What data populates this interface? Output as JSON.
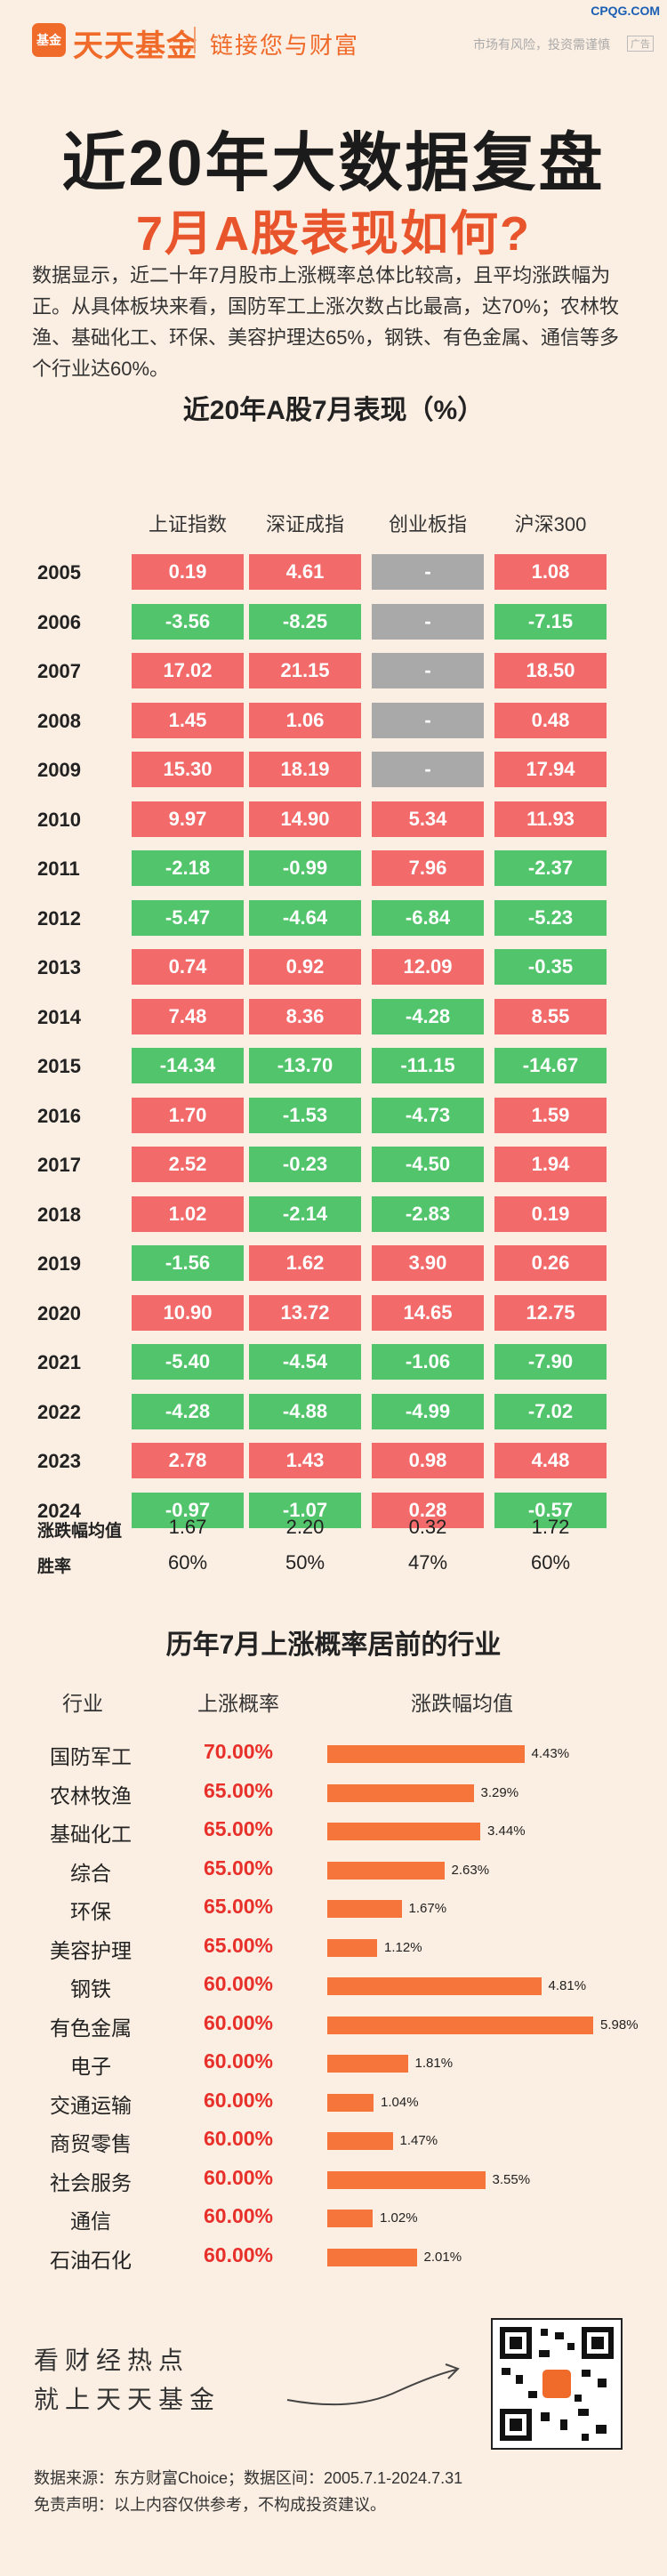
{
  "header": {
    "logo_badge": "基金",
    "logo_text": "天天基金",
    "slogan": "链接您与财富",
    "risk_note": "市场有风险，投资需谨慎",
    "ad_tag": "广告",
    "corner_mark": "CPQG.COM"
  },
  "title_line1": "近20年大数据复盘",
  "title_line2": "7月A股表现如何?",
  "intro": "数据显示，近二十年7月股市上涨概率总体比较高，且平均涨跌幅为正。从具体板块来看，国防军工上涨次数占比最高，达70%；农林牧渔、基础化工、环保、美容护理达65%，钢铁、有色金属、通信等多个行业达60%。",
  "table": {
    "title": "近20年A股7月表现（%）",
    "columns": [
      "上证指数",
      "深证成指",
      "创业板指",
      "沪深300"
    ],
    "rows": [
      {
        "year": "2005",
        "values": [
          "0.19",
          "4.61",
          "-",
          "1.08"
        ]
      },
      {
        "year": "2006",
        "values": [
          "-3.56",
          "-8.25",
          "-",
          "-7.15"
        ]
      },
      {
        "year": "2007",
        "values": [
          "17.02",
          "21.15",
          "-",
          "18.50"
        ]
      },
      {
        "year": "2008",
        "values": [
          "1.45",
          "1.06",
          "-",
          "0.48"
        ]
      },
      {
        "year": "2009",
        "values": [
          "15.30",
          "18.19",
          "-",
          "17.94"
        ]
      },
      {
        "year": "2010",
        "values": [
          "9.97",
          "14.90",
          "5.34",
          "11.93"
        ]
      },
      {
        "year": "2011",
        "values": [
          "-2.18",
          "-0.99",
          "7.96",
          "-2.37"
        ]
      },
      {
        "year": "2012",
        "values": [
          "-5.47",
          "-4.64",
          "-6.84",
          "-5.23"
        ]
      },
      {
        "year": "2013",
        "values": [
          "0.74",
          "0.92",
          "12.09",
          "-0.35"
        ]
      },
      {
        "year": "2014",
        "values": [
          "7.48",
          "8.36",
          "-4.28",
          "8.55"
        ]
      },
      {
        "year": "2015",
        "values": [
          "-14.34",
          "-13.70",
          "-11.15",
          "-14.67"
        ]
      },
      {
        "year": "2016",
        "values": [
          "1.70",
          "-1.53",
          "-4.73",
          "1.59"
        ]
      },
      {
        "year": "2017",
        "values": [
          "2.52",
          "-0.23",
          "-4.50",
          "1.94"
        ]
      },
      {
        "year": "2018",
        "values": [
          "1.02",
          "-2.14",
          "-2.83",
          "0.19"
        ]
      },
      {
        "year": "2019",
        "values": [
          "-1.56",
          "1.62",
          "3.90",
          "0.26"
        ]
      },
      {
        "year": "2020",
        "values": [
          "10.90",
          "13.72",
          "14.65",
          "12.75"
        ]
      },
      {
        "year": "2021",
        "values": [
          "-5.40",
          "-4.54",
          "-1.06",
          "-7.90"
        ]
      },
      {
        "year": "2022",
        "values": [
          "-4.28",
          "-4.88",
          "-4.99",
          "-7.02"
        ]
      },
      {
        "year": "2023",
        "values": [
          "2.78",
          "1.43",
          "0.98",
          "4.48"
        ]
      },
      {
        "year": "2024",
        "values": [
          "-0.97",
          "-1.07",
          "0.28",
          "-0.57"
        ]
      }
    ],
    "avg_label": "涨跌幅均值",
    "avg_values": [
      "1.67",
      "2.20",
      "0.32",
      "1.72"
    ],
    "win_label": "胜率",
    "win_values": [
      "60%",
      "50%",
      "47%",
      "60%"
    ]
  },
  "industries": {
    "title": "历年7月上涨概率居前的行业",
    "col_industry": "行业",
    "col_prob": "上涨概率",
    "col_avg": "涨跌幅均值",
    "rows": [
      {
        "name": "国防军工",
        "prob": "70.00%",
        "avg": 4.43,
        "avg_label": "4.43%"
      },
      {
        "name": "农林牧渔",
        "prob": "65.00%",
        "avg": 3.29,
        "avg_label": "3.29%"
      },
      {
        "name": "基础化工",
        "prob": "65.00%",
        "avg": 3.44,
        "avg_label": "3.44%"
      },
      {
        "name": "综合",
        "prob": "65.00%",
        "avg": 2.63,
        "avg_label": "2.63%"
      },
      {
        "name": "环保",
        "prob": "65.00%",
        "avg": 1.67,
        "avg_label": "1.67%"
      },
      {
        "name": "美容护理",
        "prob": "65.00%",
        "avg": 1.12,
        "avg_label": "1.12%"
      },
      {
        "name": "钢铁",
        "prob": "60.00%",
        "avg": 4.81,
        "avg_label": "4.81%"
      },
      {
        "name": "有色金属",
        "prob": "60.00%",
        "avg": 5.98,
        "avg_label": "5.98%"
      },
      {
        "name": "电子",
        "prob": "60.00%",
        "avg": 1.81,
        "avg_label": "1.81%"
      },
      {
        "name": "交通运输",
        "prob": "60.00%",
        "avg": 1.04,
        "avg_label": "1.04%"
      },
      {
        "name": "商贸零售",
        "prob": "60.00%",
        "avg": 1.47,
        "avg_label": "1.47%"
      },
      {
        "name": "社会服务",
        "prob": "60.00%",
        "avg": 3.55,
        "avg_label": "3.55%"
      },
      {
        "name": "通信",
        "prob": "60.00%",
        "avg": 1.02,
        "avg_label": "1.02%"
      },
      {
        "name": "石油石化",
        "prob": "60.00%",
        "avg": 2.01,
        "avg_label": "2.01%"
      }
    ]
  },
  "footer": {
    "line1": "看财经热点",
    "line2": "就上天天基金",
    "source": "数据来源：东方财富Choice；数据区间：2005.7.1-2024.7.31",
    "disclaimer": "免责声明：以上内容仅供参考，不构成投资建议。"
  },
  "colors": {
    "up": "#f26a6a",
    "down": "#52c46b",
    "na": "#a9a9a9",
    "bar": "#f5753a",
    "accent": "#e8542b"
  }
}
